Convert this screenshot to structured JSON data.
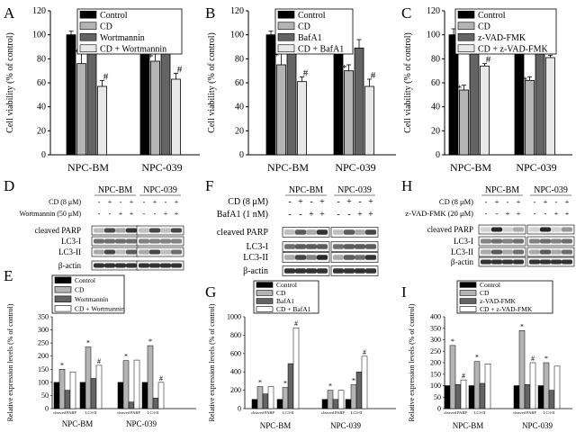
{
  "figure": {
    "cell_viability_ylabel": "Cell viability (% of control)",
    "relative_expression_ylabel": "Relative expression levels (% of control)",
    "ylim_viability": [
      0,
      120
    ],
    "groups": [
      "NPC-BM",
      "NPC-039"
    ],
    "blot_conditions": {
      "cd_row_label": "CD (8 μM)",
      "d_inhibitor_row_label": "Wortmannin (50 μM)",
      "f_inhibitor_row_label": "BafA1 (1 nM)",
      "h_inhibitor_row_label": "z-VAD-FMK (20 μM)",
      "d_cd_signs": [
        "-",
        "+",
        "-",
        "+"
      ],
      "d_inh_signs": [
        "-",
        "-",
        "+",
        "+"
      ],
      "proteins_d": [
        "cleaved PARP",
        "LC3-I",
        "LC3-II",
        "β-actin"
      ],
      "proteins_f": [
        "cleaved PARP",
        "LC3-I",
        "LC3-II",
        "β-actin"
      ],
      "proteins_h": [
        "cleaved PARP",
        "LC3-I",
        "LC3-II",
        "β-actin"
      ]
    }
  },
  "chart_data": [
    {
      "panel": "A",
      "type": "bar",
      "ylabel": "Cell viability (% of control)",
      "ylim": [
        0,
        120
      ],
      "yticks": [
        0,
        20,
        40,
        60,
        80,
        100,
        120
      ],
      "categories": [
        "NPC-BM",
        "NPC-039"
      ],
      "series": [
        {
          "name": "Control",
          "color": "#000000",
          "values": [
            100,
            100
          ],
          "errors": [
            3,
            5
          ]
        },
        {
          "name": "CD",
          "color": "#b4b4b4",
          "values": [
            76,
            78
          ],
          "errors": [
            12,
            6
          ]
        },
        {
          "name": "Wortmannin",
          "color": "#646464",
          "values": [
            105,
            105
          ],
          "errors": [
            12,
            5
          ]
        },
        {
          "name": "CD + Wortmannin",
          "color": "#e8e8e8",
          "values": [
            57,
            63
          ],
          "errors": [
            5,
            5
          ]
        }
      ],
      "annotations": [
        {
          "series": 1,
          "group": 0,
          "text": "*"
        },
        {
          "series": 3,
          "group": 0,
          "text": "#"
        },
        {
          "series": 1,
          "group": 1,
          "text": "*"
        },
        {
          "series": 3,
          "group": 1,
          "text": "#"
        }
      ]
    },
    {
      "panel": "B",
      "type": "bar",
      "ylabel": "Cell viability (% of control)",
      "ylim": [
        0,
        120
      ],
      "yticks": [
        0,
        20,
        40,
        60,
        80,
        100,
        120
      ],
      "categories": [
        "NPC-BM",
        "NPC-039"
      ],
      "series": [
        {
          "name": "Control",
          "color": "#000000",
          "values": [
            100,
            100
          ],
          "errors": [
            3,
            6
          ]
        },
        {
          "name": "CD",
          "color": "#b4b4b4",
          "values": [
            75,
            70
          ],
          "errors": [
            10,
            5
          ]
        },
        {
          "name": "BafA1",
          "color": "#646464",
          "values": [
            100,
            89
          ],
          "errors": [
            3,
            7
          ]
        },
        {
          "name": "CD + BafA1",
          "color": "#e8e8e8",
          "values": [
            61,
            57
          ],
          "errors": [
            4,
            6
          ]
        }
      ],
      "annotations": [
        {
          "series": 1,
          "group": 0,
          "text": "*"
        },
        {
          "series": 3,
          "group": 0,
          "text": "#"
        },
        {
          "series": 1,
          "group": 1,
          "text": "*"
        },
        {
          "series": 3,
          "group": 1,
          "text": "#"
        }
      ]
    },
    {
      "panel": "C",
      "type": "bar",
      "ylabel": "Cell viability (% of control)",
      "ylim": [
        0,
        120
      ],
      "yticks": [
        0,
        20,
        40,
        60,
        80,
        100,
        120
      ],
      "categories": [
        "NPC-BM",
        "NPC-039"
      ],
      "series": [
        {
          "name": "Control",
          "color": "#000000",
          "values": [
            100,
            104
          ],
          "errors": [
            5,
            4
          ]
        },
        {
          "name": "CD",
          "color": "#b4b4b4",
          "values": [
            54,
            62
          ],
          "errors": [
            4,
            3
          ]
        },
        {
          "name": "z-VAD-FMK",
          "color": "#646464",
          "values": [
            95,
            97
          ],
          "errors": [
            3,
            2
          ]
        },
        {
          "name": "CD + z-VAD-FMK",
          "color": "#e8e8e8",
          "values": [
            74,
            81
          ],
          "errors": [
            2,
            2
          ]
        }
      ],
      "annotations": [
        {
          "series": 1,
          "group": 0,
          "text": "*"
        },
        {
          "series": 3,
          "group": 0,
          "text": "#"
        },
        {
          "series": 1,
          "group": 1,
          "text": "*"
        },
        {
          "series": 3,
          "group": 1,
          "text": "#"
        }
      ]
    },
    {
      "panel": "E",
      "type": "bar",
      "ylabel": "Relative expression levels (% of control)",
      "ylim": [
        0,
        350
      ],
      "yticks": [
        0,
        50,
        100,
        150,
        200,
        250,
        300,
        350
      ],
      "categories": [
        "cleaved PARP",
        "LC3-II",
        "cleaved PARP",
        "LC3-II"
      ],
      "groups": [
        "NPC-BM",
        "NPC-039"
      ],
      "series": [
        {
          "name": "Control",
          "color": "#000000",
          "values": [
            100,
            100,
            100,
            100
          ]
        },
        {
          "name": "CD",
          "color": "#b4b4b4",
          "values": [
            150,
            235,
            183,
            240
          ]
        },
        {
          "name": "Wortmannin",
          "color": "#646464",
          "values": [
            70,
            115,
            25,
            40
          ]
        },
        {
          "name": "CD + Wortmannin",
          "color": "#ffffff",
          "values": [
            140,
            165,
            185,
            100
          ]
        }
      ],
      "annotations": [
        {
          "series": 1,
          "category": 0,
          "text": "*"
        },
        {
          "series": 1,
          "category": 1,
          "text": "*"
        },
        {
          "series": 3,
          "category": 1,
          "text": "#"
        },
        {
          "series": 1,
          "category": 2,
          "text": "*"
        },
        {
          "series": 1,
          "category": 3,
          "text": "*"
        },
        {
          "series": 3,
          "category": 3,
          "text": "#"
        }
      ]
    },
    {
      "panel": "G",
      "type": "bar",
      "ylabel": "Relative expression levels (% of control)",
      "ylim": [
        0,
        1000
      ],
      "yticks": [
        0,
        200,
        400,
        600,
        800,
        1000
      ],
      "categories": [
        "cleaved PARP",
        "LC3-II",
        "cleaved PARP",
        "LC3-II"
      ],
      "groups": [
        "NPC-BM",
        "NPC-039"
      ],
      "series": [
        {
          "name": "Control",
          "color": "#000000",
          "values": [
            100,
            100,
            100,
            100
          ]
        },
        {
          "name": "CD",
          "color": "#b4b4b4",
          "values": [
            240,
            230,
            200,
            260
          ]
        },
        {
          "name": "BafA1",
          "color": "#646464",
          "values": [
            160,
            490,
            100,
            400
          ]
        },
        {
          "name": "CD + BafA1",
          "color": "#ffffff",
          "values": [
            240,
            880,
            200,
            570
          ]
        }
      ],
      "annotations": [
        {
          "series": 1,
          "category": 0,
          "text": "*"
        },
        {
          "series": 1,
          "category": 1,
          "text": "*"
        },
        {
          "series": 3,
          "category": 1,
          "text": "#"
        },
        {
          "series": 1,
          "category": 2,
          "text": "*"
        },
        {
          "series": 1,
          "category": 3,
          "text": "*"
        },
        {
          "series": 3,
          "category": 3,
          "text": "#"
        }
      ]
    },
    {
      "panel": "I",
      "type": "bar",
      "ylabel": "Relative expression levels (% of control)",
      "ylim": [
        0,
        400
      ],
      "yticks": [
        0,
        50,
        100,
        150,
        200,
        250,
        300,
        350,
        400
      ],
      "categories": [
        "cleaved PARP",
        "LC3-II",
        "cleaved PARP",
        "LC3-II"
      ],
      "groups": [
        "NPC-BM",
        "NPC-039"
      ],
      "series": [
        {
          "name": "Control",
          "color": "#000000",
          "values": [
            100,
            100,
            100,
            100
          ]
        },
        {
          "name": "CD",
          "color": "#b4b4b4",
          "values": [
            275,
            205,
            340,
            200
          ]
        },
        {
          "name": "z-VAD-FMK",
          "color": "#646464",
          "values": [
            105,
            110,
            105,
            80
          ]
        },
        {
          "name": "CD + z-VAD-FMK",
          "color": "#ffffff",
          "values": [
            125,
            195,
            200,
            185
          ]
        }
      ],
      "annotations": [
        {
          "series": 1,
          "category": 0,
          "text": "*"
        },
        {
          "series": 3,
          "category": 0,
          "text": "#"
        },
        {
          "series": 1,
          "category": 1,
          "text": "*"
        },
        {
          "series": 1,
          "category": 2,
          "text": "*"
        },
        {
          "series": 3,
          "category": 2,
          "text": "#"
        },
        {
          "series": 1,
          "category": 3,
          "text": "*"
        }
      ]
    }
  ]
}
